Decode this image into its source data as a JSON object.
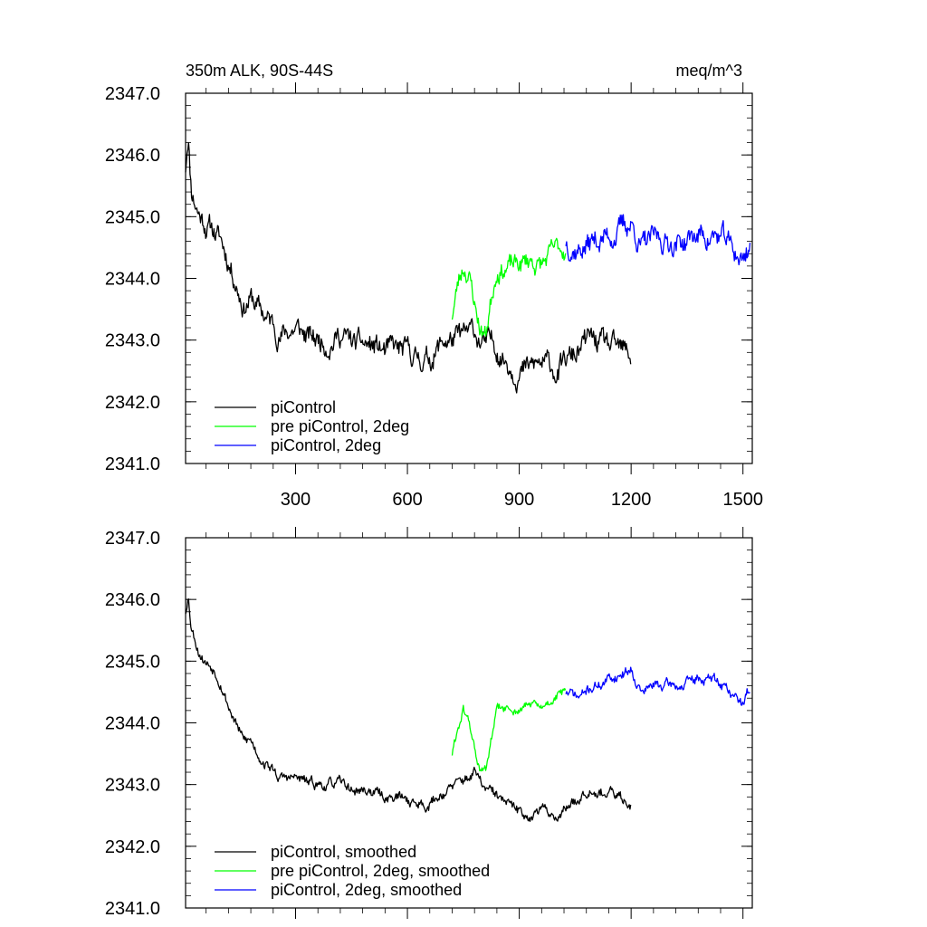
{
  "figure": {
    "title_left": "350m ALK, 90S-44S",
    "title_right": "meq/m^3"
  },
  "chart_data": [
    {
      "type": "line",
      "xlim": [
        5,
        1525
      ],
      "ylim": [
        2341.0,
        2347.0
      ],
      "x_ticks": [
        300,
        600,
        900,
        1200,
        1500
      ],
      "x_tick_labels": [
        "300",
        "600",
        "900",
        "1200",
        "1500"
      ],
      "y_ticks": [
        2341.0,
        2342.0,
        2343.0,
        2344.0,
        2345.0,
        2346.0,
        2347.0
      ],
      "y_tick_labels": [
        "2341.0",
        "2342.0",
        "2343.0",
        "2344.0",
        "2345.0",
        "2346.0",
        "2347.0"
      ],
      "legend_position": "bottom-left",
      "grid": false,
      "series": [
        {
          "name": "piControl",
          "color": "#000000",
          "x_range": [
            5,
            1200
          ],
          "anchors": [
            [
              5,
              2345.8
            ],
            [
              12,
              2346.4
            ],
            [
              20,
              2345.5
            ],
            [
              40,
              2345.1
            ],
            [
              60,
              2344.9
            ],
            [
              80,
              2344.8
            ],
            [
              100,
              2344.6
            ],
            [
              120,
              2344.3
            ],
            [
              140,
              2344.0
            ],
            [
              160,
              2343.6
            ],
            [
              180,
              2343.7
            ],
            [
              200,
              2343.5
            ],
            [
              230,
              2343.3
            ],
            [
              260,
              2343.1
            ],
            [
              300,
              2343.2
            ],
            [
              340,
              2343.0
            ],
            [
              380,
              2343.0
            ],
            [
              420,
              2343.1
            ],
            [
              460,
              2342.9
            ],
            [
              500,
              2342.9
            ],
            [
              540,
              2342.8
            ],
            [
              580,
              2342.8
            ],
            [
              620,
              2342.7
            ],
            [
              660,
              2342.7
            ],
            [
              700,
              2343.0
            ],
            [
              740,
              2343.0
            ],
            [
              780,
              2343.1
            ],
            [
              810,
              2342.9
            ],
            [
              840,
              2342.9
            ],
            [
              880,
              2342.6
            ],
            [
              920,
              2342.5
            ],
            [
              960,
              2342.6
            ],
            [
              1000,
              2342.5
            ],
            [
              1020,
              2342.6
            ],
            [
              1060,
              2342.8
            ],
            [
              1090,
              2343.0
            ],
            [
              1120,
              2342.9
            ],
            [
              1160,
              2342.8
            ],
            [
              1200,
              2342.7
            ]
          ],
          "noise": 0.28,
          "seed": 11
        },
        {
          "name": "pre piControl, 2deg",
          "color": "#00ff00",
          "x_range": [
            720,
            1025
          ],
          "anchors": [
            [
              720,
              2343.4
            ],
            [
              735,
              2343.9
            ],
            [
              750,
              2344.2
            ],
            [
              765,
              2344.1
            ],
            [
              780,
              2343.6
            ],
            [
              795,
              2343.2
            ],
            [
              810,
              2343.1
            ],
            [
              825,
              2343.7
            ],
            [
              840,
              2344.2
            ],
            [
              870,
              2344.2
            ],
            [
              900,
              2344.2
            ],
            [
              930,
              2344.3
            ],
            [
              960,
              2344.2
            ],
            [
              990,
              2344.4
            ],
            [
              1025,
              2344.5
            ]
          ],
          "noise": 0.24,
          "seed": 23
        },
        {
          "name": "piControl, 2deg",
          "color": "#0000ff",
          "x_range": [
            1025,
            1520
          ],
          "anchors": [
            [
              1025,
              2344.6
            ],
            [
              1060,
              2344.5
            ],
            [
              1100,
              2344.6
            ],
            [
              1140,
              2344.7
            ],
            [
              1170,
              2344.8
            ],
            [
              1200,
              2344.9
            ],
            [
              1230,
              2344.5
            ],
            [
              1260,
              2344.6
            ],
            [
              1300,
              2344.6
            ],
            [
              1340,
              2344.6
            ],
            [
              1380,
              2344.7
            ],
            [
              1420,
              2344.7
            ],
            [
              1450,
              2344.6
            ],
            [
              1480,
              2344.4
            ],
            [
              1500,
              2344.3
            ],
            [
              1520,
              2344.6
            ]
          ],
          "noise": 0.28,
          "seed": 37
        }
      ]
    },
    {
      "type": "line",
      "xlim": [
        5,
        1525
      ],
      "ylim": [
        2341.0,
        2347.0
      ],
      "x_ticks": [
        300,
        600,
        900,
        1200,
        1500
      ],
      "x_tick_labels": [],
      "y_ticks": [
        2341.0,
        2342.0,
        2343.0,
        2344.0,
        2345.0,
        2346.0,
        2347.0
      ],
      "y_tick_labels": [
        "2341.0",
        "2342.0",
        "2343.0",
        "2344.0",
        "2345.0",
        "2346.0",
        "2347.0"
      ],
      "legend_position": "bottom-left",
      "grid": false,
      "series": [
        {
          "name": "piControl, smoothed",
          "color": "#000000",
          "x_range": [
            5,
            1200
          ],
          "anchors": [
            [
              5,
              2345.8
            ],
            [
              12,
              2346.1
            ],
            [
              20,
              2345.6
            ],
            [
              40,
              2345.2
            ],
            [
              60,
              2345.0
            ],
            [
              80,
              2344.9
            ],
            [
              100,
              2344.7
            ],
            [
              120,
              2344.3
            ],
            [
              140,
              2344.0
            ],
            [
              160,
              2343.7
            ],
            [
              180,
              2343.7
            ],
            [
              200,
              2343.5
            ],
            [
              230,
              2343.3
            ],
            [
              260,
              2343.1
            ],
            [
              300,
              2343.1
            ],
            [
              340,
              2343.0
            ],
            [
              380,
              2343.0
            ],
            [
              420,
              2343.0
            ],
            [
              460,
              2342.9
            ],
            [
              500,
              2342.9
            ],
            [
              540,
              2342.8
            ],
            [
              580,
              2342.8
            ],
            [
              620,
              2342.7
            ],
            [
              660,
              2342.7
            ],
            [
              700,
              2342.9
            ],
            [
              740,
              2343.0
            ],
            [
              780,
              2343.2
            ],
            [
              810,
              2342.9
            ],
            [
              840,
              2342.8
            ],
            [
              880,
              2342.6
            ],
            [
              920,
              2342.5
            ],
            [
              960,
              2342.6
            ],
            [
              1000,
              2342.5
            ],
            [
              1020,
              2342.6
            ],
            [
              1060,
              2342.8
            ],
            [
              1090,
              2343.0
            ],
            [
              1120,
              2342.9
            ],
            [
              1160,
              2342.8
            ],
            [
              1200,
              2342.7
            ]
          ],
          "noise": 0.13,
          "seed": 53
        },
        {
          "name": "pre piControl, 2deg, smoothed",
          "color": "#00ff00",
          "x_range": [
            720,
            1025
          ],
          "anchors": [
            [
              720,
              2343.5
            ],
            [
              735,
              2343.9
            ],
            [
              750,
              2344.2
            ],
            [
              765,
              2344.0
            ],
            [
              780,
              2343.6
            ],
            [
              795,
              2343.2
            ],
            [
              810,
              2343.2
            ],
            [
              825,
              2343.7
            ],
            [
              840,
              2344.2
            ],
            [
              870,
              2344.2
            ],
            [
              900,
              2344.2
            ],
            [
              930,
              2344.3
            ],
            [
              960,
              2344.2
            ],
            [
              990,
              2344.4
            ],
            [
              1025,
              2344.5
            ]
          ],
          "noise": 0.11,
          "seed": 61
        },
        {
          "name": "piControl, 2deg, smoothed",
          "color": "#0000ff",
          "x_range": [
            1025,
            1520
          ],
          "anchors": [
            [
              1025,
              2344.5
            ],
            [
              1060,
              2344.4
            ],
            [
              1100,
              2344.6
            ],
            [
              1140,
              2344.7
            ],
            [
              1170,
              2344.8
            ],
            [
              1200,
              2344.9
            ],
            [
              1230,
              2344.5
            ],
            [
              1260,
              2344.6
            ],
            [
              1300,
              2344.6
            ],
            [
              1340,
              2344.6
            ],
            [
              1380,
              2344.7
            ],
            [
              1420,
              2344.7
            ],
            [
              1450,
              2344.6
            ],
            [
              1480,
              2344.4
            ],
            [
              1500,
              2344.3
            ],
            [
              1520,
              2344.6
            ]
          ],
          "noise": 0.13,
          "seed": 71
        }
      ]
    }
  ]
}
